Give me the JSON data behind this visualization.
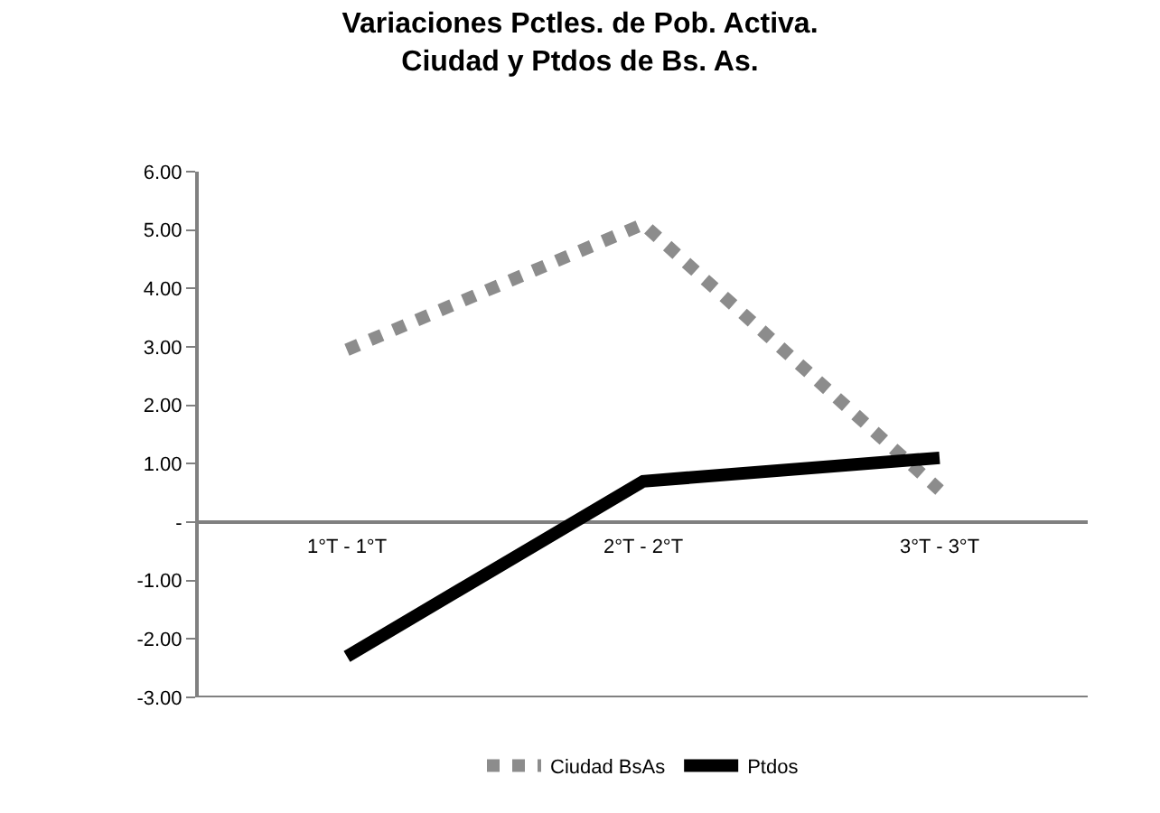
{
  "chart_data": {
    "type": "line",
    "title": "Variaciones Pctles. de Pob. Activa.\nCiudad y Ptdos de Bs. As.",
    "categories": [
      "1°T - 1°T",
      "2°T - 2°T",
      "3°T - 3°T"
    ],
    "series": [
      {
        "name": "Ciudad BsAs",
        "color": "#8c8c8c",
        "values": [
          2.95,
          5.1,
          0.55
        ],
        "line_style": "dotted"
      },
      {
        "name": "Ptdos",
        "color": "#000000",
        "values": [
          -2.3,
          0.7,
          1.1
        ],
        "line_style": "solid"
      }
    ],
    "ylim": [
      -3,
      6
    ],
    "yticks": [
      {
        "value": -3,
        "label": "-3.00"
      },
      {
        "value": -2,
        "label": "-2.00"
      },
      {
        "value": -1,
        "label": "-1.00"
      },
      {
        "value": 0,
        "label": "-"
      },
      {
        "value": 1,
        "label": "1.00"
      },
      {
        "value": 2,
        "label": "2.00"
      },
      {
        "value": 3,
        "label": "3.00"
      },
      {
        "value": 4,
        "label": "4.00"
      },
      {
        "value": 5,
        "label": "5.00"
      },
      {
        "value": 6,
        "label": "6.00"
      }
    ],
    "legend": "bottom",
    "marker": "none"
  }
}
